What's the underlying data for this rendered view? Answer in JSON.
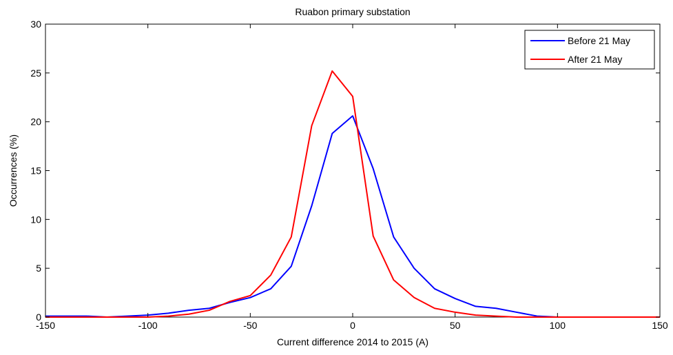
{
  "chart_data": {
    "type": "line",
    "title": "Ruabon primary substation",
    "xlabel": "Current difference 2014 to 2015 (A)",
    "ylabel": "Occurrences (%)",
    "xlim": [
      -150,
      150
    ],
    "ylim": [
      0,
      30
    ],
    "xticks": [
      -150,
      -100,
      -50,
      0,
      50,
      100,
      150
    ],
    "yticks": [
      0,
      5,
      10,
      15,
      20,
      25,
      30
    ],
    "grid": false,
    "legend_position": "top-right",
    "series": [
      {
        "name": "Before 21 May",
        "color": "#0000ff",
        "x": [
          -150,
          -140,
          -130,
          -120,
          -110,
          -100,
          -90,
          -80,
          -70,
          -60,
          -50,
          -40,
          -30,
          -20,
          -10,
          0,
          10,
          20,
          30,
          40,
          50,
          60,
          70,
          80,
          90,
          100,
          110,
          120,
          130,
          140,
          150
        ],
        "y": [
          0.1,
          0.1,
          0.1,
          0.0,
          0.1,
          0.2,
          0.4,
          0.7,
          0.9,
          1.5,
          2.0,
          2.9,
          5.2,
          11.4,
          18.8,
          20.6,
          15.2,
          8.2,
          5.0,
          2.9,
          1.9,
          1.1,
          0.9,
          0.5,
          0.1,
          0.0,
          0.0,
          0.0,
          0.0,
          0.0,
          0.0
        ]
      },
      {
        "name": "After 21 May",
        "color": "#ff0000",
        "x": [
          -150,
          -140,
          -130,
          -120,
          -110,
          -100,
          -90,
          -80,
          -70,
          -60,
          -50,
          -40,
          -30,
          -20,
          -10,
          0,
          10,
          20,
          30,
          40,
          50,
          60,
          70,
          80,
          90,
          100,
          110,
          120,
          130,
          140,
          150
        ],
        "y": [
          0.0,
          0.0,
          0.0,
          0.0,
          0.0,
          0.0,
          0.1,
          0.3,
          0.7,
          1.6,
          2.2,
          4.3,
          8.2,
          19.6,
          25.2,
          22.6,
          8.3,
          3.8,
          2.0,
          0.9,
          0.5,
          0.2,
          0.1,
          0.0,
          0.0,
          0.0,
          0.0,
          0.0,
          0.0,
          0.0,
          0.0
        ]
      }
    ]
  }
}
